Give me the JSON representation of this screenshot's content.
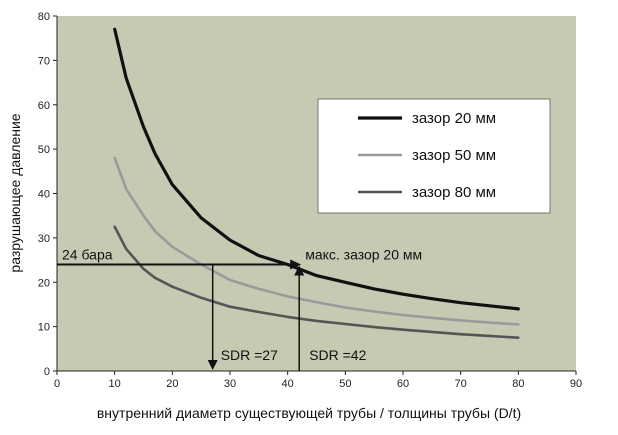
{
  "chart_data": {
    "type": "line",
    "title": "",
    "xlabel": "внутренний диаметр существующей трубы / толщины трубы (D/t)",
    "ylabel": "разрушающее давление",
    "xlim": [
      0,
      90
    ],
    "ylim": [
      0,
      80
    ],
    "x_ticks": [
      0,
      10,
      20,
      30,
      40,
      50,
      60,
      70,
      80,
      90
    ],
    "y_ticks": [
      0,
      10,
      20,
      30,
      40,
      50,
      60,
      70,
      80
    ],
    "grid": false,
    "plot_background": "#c8c9b3",
    "legend_position": "upper-right",
    "series": [
      {
        "name": "зазор 20 мм",
        "color": "#111111",
        "x": [
          10,
          12,
          15,
          17,
          20,
          25,
          30,
          35,
          40,
          45,
          50,
          55,
          60,
          65,
          70,
          75,
          80
        ],
        "y": [
          77,
          66,
          55,
          49,
          42,
          34.5,
          29.5,
          26,
          24,
          21.5,
          20,
          18.5,
          17.3,
          16.3,
          15.4,
          14.7,
          14
        ]
      },
      {
        "name": "зазор 50 мм",
        "color": "#9a9a9a",
        "x": [
          10,
          12,
          15,
          17,
          20,
          25,
          30,
          35,
          40,
          45,
          50,
          55,
          60,
          65,
          70,
          75,
          80
        ],
        "y": [
          48,
          41,
          35,
          31.5,
          28,
          24,
          20.5,
          18.5,
          16.8,
          15.5,
          14.3,
          13.4,
          12.6,
          12,
          11.4,
          10.9,
          10.5
        ]
      },
      {
        "name": "зазор 80 мм",
        "color": "#555555",
        "x": [
          10,
          12,
          15,
          17,
          20,
          25,
          30,
          35,
          40,
          45,
          50,
          55,
          60,
          65,
          70,
          75,
          80
        ],
        "y": [
          32.5,
          27.5,
          23,
          21,
          19,
          16.5,
          14.5,
          13.3,
          12.2,
          11.3,
          10.6,
          9.9,
          9.3,
          8.8,
          8.3,
          7.9,
          7.5
        ]
      }
    ],
    "annotations": {
      "hline_label": "24 бара",
      "hline_y": 24,
      "hline_x_end": 42,
      "point_label": "макс. зазор 20 мм",
      "vline1": {
        "x": 27,
        "label": "SDR =27"
      },
      "vline2": {
        "x": 42,
        "label": "SDR =42"
      }
    }
  }
}
